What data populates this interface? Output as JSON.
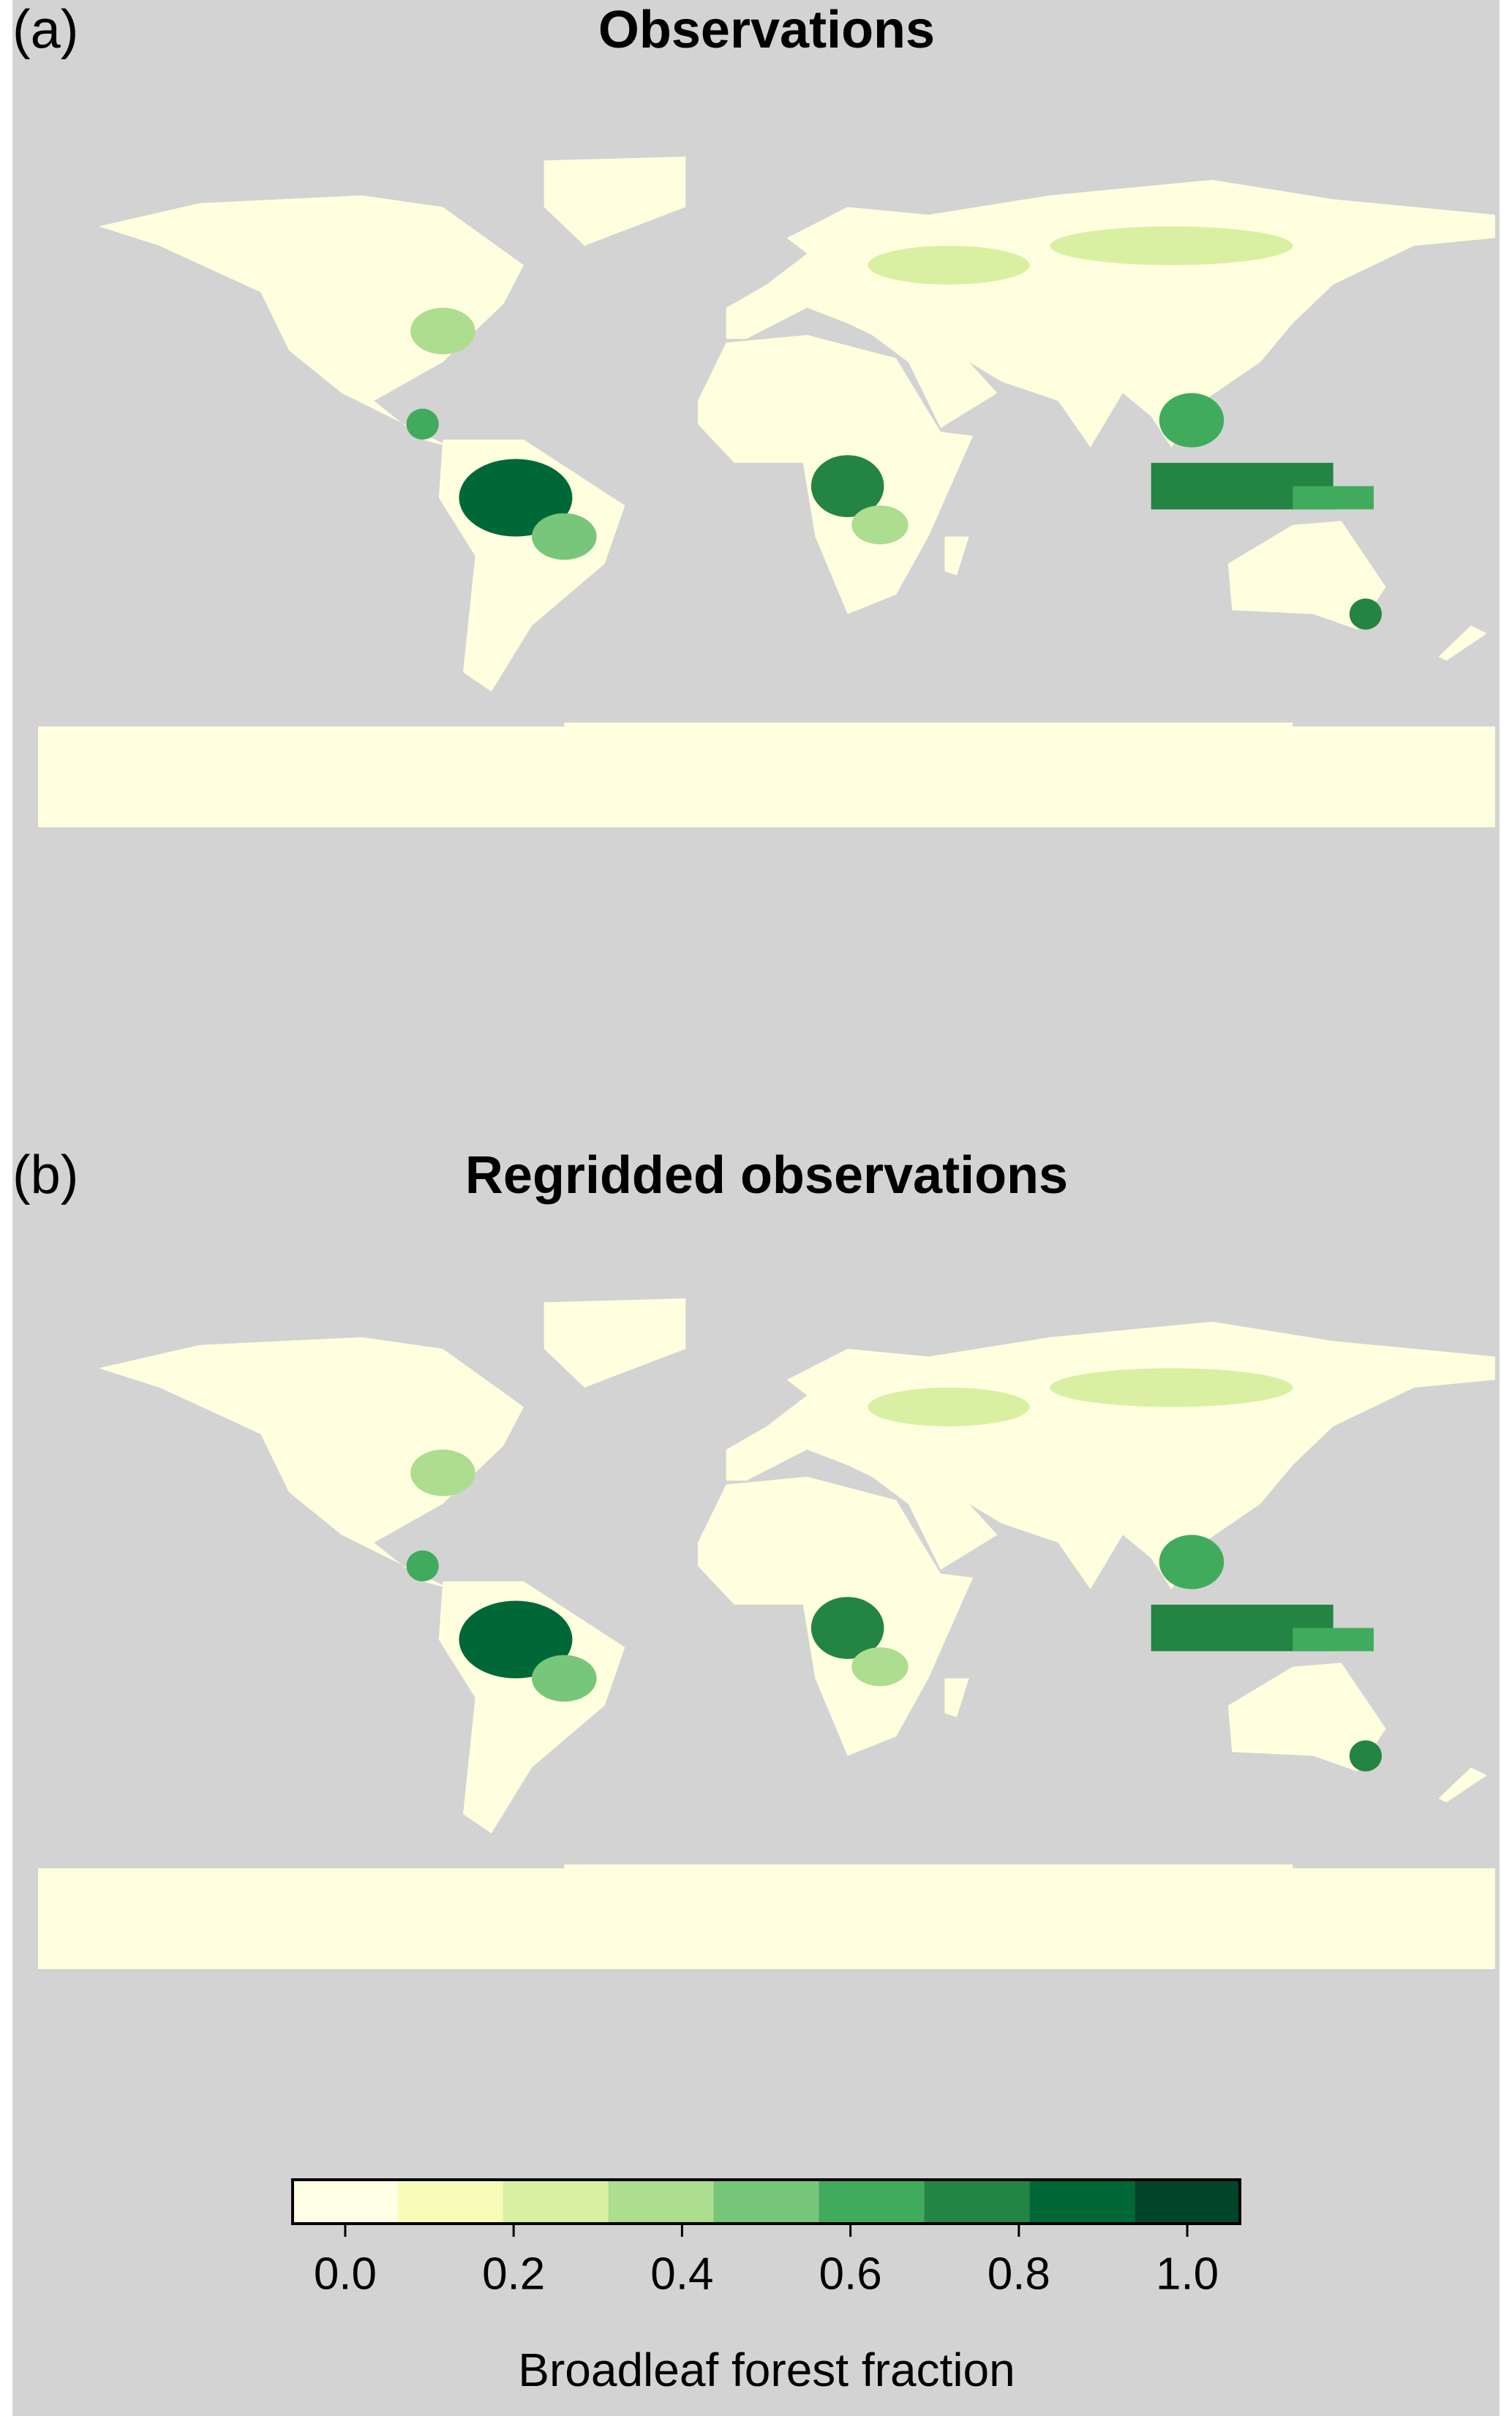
{
  "panels": [
    {
      "label": "(a)",
      "title": "Observations"
    },
    {
      "label": "(b)",
      "title": "Regridded observations"
    }
  ],
  "colorbar": {
    "label": "Broadleaf forest fraction",
    "colors": [
      "#ffffe5",
      "#f7fcb9",
      "#d9f0a3",
      "#addd8e",
      "#78c679",
      "#41ab5d",
      "#238443",
      "#006837",
      "#004529"
    ],
    "bins": [
      -0.0625,
      0.0625,
      0.1875,
      0.3125,
      0.4375,
      0.5625,
      0.6875,
      0.8125,
      0.9375,
      1.0625
    ],
    "ticks": [
      {
        "value": 0,
        "label": "0.0"
      },
      {
        "value": 0.2,
        "label": "0.2"
      },
      {
        "value": 0.4,
        "label": "0.4"
      },
      {
        "value": 0.6,
        "label": "0.6"
      },
      {
        "value": 0.8,
        "label": "0.8"
      },
      {
        "value": 1,
        "label": "1.0"
      }
    ]
  }
}
